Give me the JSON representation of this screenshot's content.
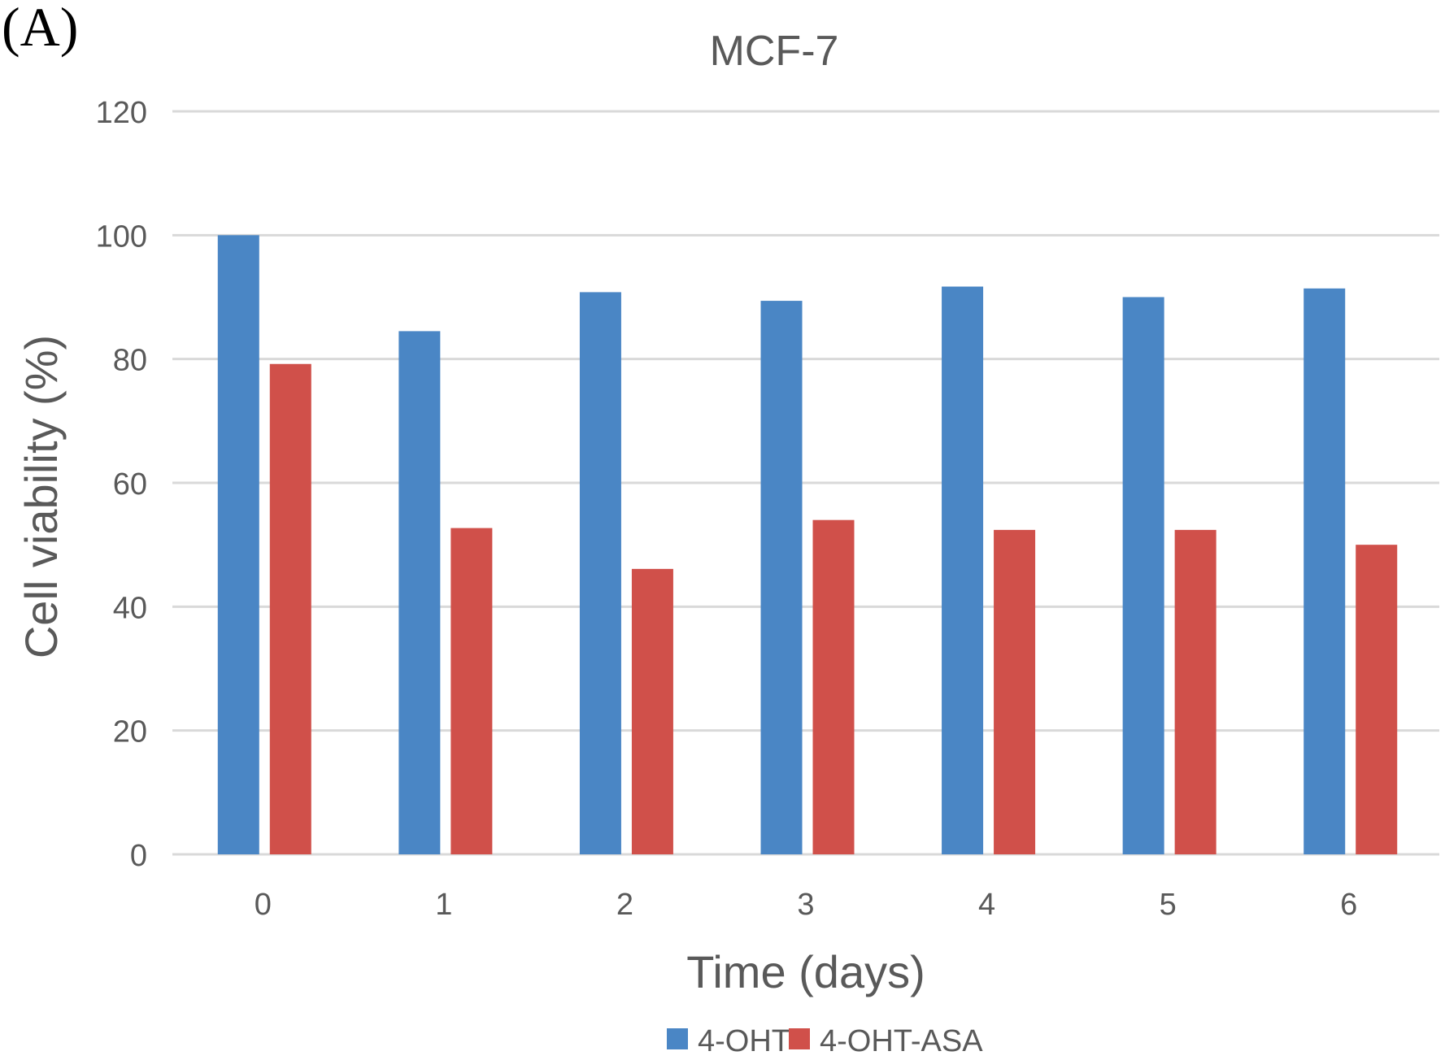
{
  "panel_label": "(A)",
  "chart_data": {
    "type": "bar",
    "title": "MCF-7",
    "xlabel": "Time (days)",
    "ylabel": "Cell viability (%)",
    "categories": [
      "0",
      "1",
      "2",
      "3",
      "4",
      "5",
      "6"
    ],
    "series": [
      {
        "name": "4-OHT",
        "color": "#4a86c5",
        "values": [
          100,
          84.5,
          90.8,
          89.4,
          91.7,
          90.0,
          91.4
        ]
      },
      {
        "name": "4-OHT-ASA",
        "color": "#d0504a",
        "values": [
          79.2,
          52.7,
          46.1,
          54.0,
          52.4,
          52.4,
          50.0
        ]
      }
    ],
    "ylim": [
      0,
      120
    ],
    "yticks": [
      "0",
      "20",
      "40",
      "60",
      "80",
      "100",
      "120"
    ],
    "grid": true,
    "legend": "bottom"
  }
}
